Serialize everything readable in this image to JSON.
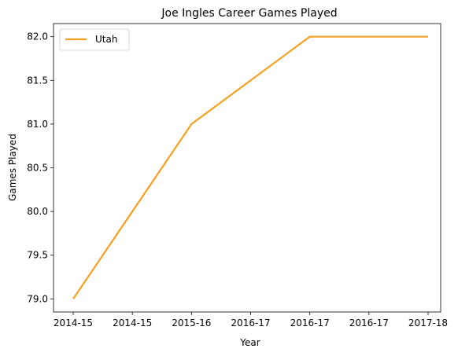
{
  "chart_data": {
    "type": "line",
    "title": "Joe Ingles Career Games Played",
    "xlabel": "Year",
    "ylabel": "Games Played",
    "x_tick_labels": [
      "2014-15",
      "2014-15",
      "2015-16",
      "2016-17",
      "2016-17",
      "2016-17",
      "2017-18"
    ],
    "y_ticks": [
      "79.0",
      "79.5",
      "80.0",
      "80.5",
      "81.0",
      "81.5",
      "82.0"
    ],
    "ylim": [
      78.85,
      82.15
    ],
    "grid": false,
    "legend_position": "top-left",
    "series": [
      {
        "name": "Utah",
        "color": "#f5a01f",
        "x": [
          "2014-15",
          "2015-16",
          "2016-17",
          "2017-18"
        ],
        "values": [
          79,
          81,
          82,
          82
        ]
      }
    ]
  }
}
